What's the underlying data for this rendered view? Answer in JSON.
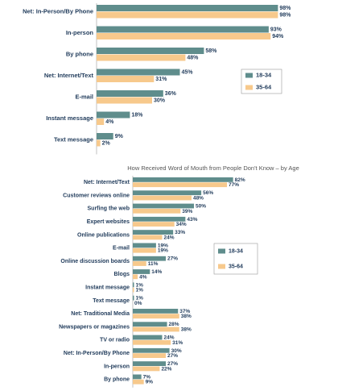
{
  "chart_data": [
    {
      "type": "bar",
      "orientation": "horizontal",
      "categories": [
        "Net: In-Person/By Phone",
        "In-person",
        "By phone",
        "Net: Internet/Text",
        "E-mail",
        "Instant message",
        "Text message"
      ],
      "series": [
        {
          "name": "18-34",
          "color": "#5f8d8c",
          "values": [
            98,
            93,
            58,
            45,
            36,
            18,
            9
          ],
          "value_labels": [
            "98%",
            "93%",
            "58%",
            "45%",
            "36%",
            "18%",
            "9%"
          ]
        },
        {
          "name": "35-64",
          "color": "#f7c98c",
          "values": [
            98,
            94,
            48,
            31,
            30,
            4,
            2
          ],
          "value_labels": [
            "98%",
            "94%",
            "48%",
            "31%",
            "30%",
            "4%",
            "2%"
          ]
        }
      ],
      "xlim": [
        0,
        100
      ],
      "legend": "right"
    },
    {
      "type": "bar",
      "orientation": "horizontal",
      "title": "How Received Word of Mouth from People Don't Know – by Age",
      "categories": [
        "Net: Internet/Text",
        "Customer reviews online",
        "Surfing the web",
        "Expert websites",
        "Online publications",
        "E-mail",
        "Online discussion boards",
        "Blogs",
        "Instant message",
        "Text message",
        "Net: Traditional Media",
        "Newspapers or magazines",
        "TV or radio",
        "Net: In-Person/By Phone",
        "In-person",
        "By phone"
      ],
      "series": [
        {
          "name": "18-34",
          "color": "#5f8d8c",
          "values": [
            82,
            56,
            50,
            43,
            33,
            19,
            27,
            14,
            1,
            1,
            37,
            28,
            24,
            30,
            27,
            7
          ],
          "value_labels": [
            "82%",
            "56%",
            "50%",
            "43%",
            "33%",
            "19%",
            "27%",
            "14%",
            "1%",
            "1%",
            "37%",
            "28%",
            "24%",
            "30%",
            "27%",
            "7%"
          ]
        },
        {
          "name": "35-64",
          "color": "#f7c98c",
          "values": [
            77,
            48,
            39,
            34,
            24,
            19,
            11,
            4,
            1,
            0,
            38,
            38,
            31,
            27,
            22,
            9
          ],
          "value_labels": [
            "77%",
            "48%",
            "39%",
            "34%",
            "24%",
            "19%",
            "11%",
            "4%",
            "1%",
            "0%",
            "38%",
            "38%",
            "31%",
            "27%",
            "22%",
            "9%"
          ]
        }
      ],
      "xlim": [
        0,
        100
      ],
      "legend": "right"
    }
  ]
}
